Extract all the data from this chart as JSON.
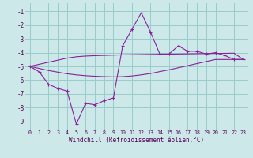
{
  "xlabel": "Windchill (Refroidissement éolien,°C)",
  "background_color": "#cce8e8",
  "grid_color": "#99cccc",
  "line_color": "#882299",
  "xlim": [
    -0.5,
    23.5
  ],
  "ylim": [
    -9.6,
    -0.4
  ],
  "yticks": [
    -1,
    -2,
    -3,
    -4,
    -5,
    -6,
    -7,
    -8,
    -9
  ],
  "xticks": [
    0,
    1,
    2,
    3,
    4,
    5,
    6,
    7,
    8,
    9,
    10,
    11,
    12,
    13,
    14,
    15,
    16,
    17,
    18,
    19,
    20,
    21,
    22,
    23
  ],
  "x_data": [
    0,
    1,
    2,
    3,
    4,
    5,
    6,
    7,
    8,
    9,
    10,
    11,
    12,
    13,
    14,
    15,
    16,
    17,
    18,
    19,
    20,
    21,
    22,
    23
  ],
  "y_main": [
    -5.0,
    -5.4,
    -6.3,
    -6.6,
    -6.8,
    -9.2,
    -7.7,
    -7.8,
    -7.5,
    -7.3,
    -3.5,
    -2.3,
    -1.1,
    -2.5,
    -4.1,
    -4.1,
    -3.5,
    -3.9,
    -3.9,
    -4.1,
    -4.0,
    -4.2,
    -4.5,
    -4.5
  ],
  "y_upper": [
    -5.0,
    -4.85,
    -4.7,
    -4.55,
    -4.4,
    -4.3,
    -4.25,
    -4.22,
    -4.2,
    -4.18,
    -4.16,
    -4.15,
    -4.14,
    -4.13,
    -4.12,
    -4.11,
    -4.1,
    -4.09,
    -4.08,
    -4.07,
    -4.06,
    -4.05,
    -4.04,
    -4.5
  ],
  "y_lower": [
    -5.0,
    -5.15,
    -5.3,
    -5.42,
    -5.54,
    -5.62,
    -5.68,
    -5.72,
    -5.75,
    -5.77,
    -5.75,
    -5.7,
    -5.62,
    -5.52,
    -5.38,
    -5.25,
    -5.1,
    -4.95,
    -4.8,
    -4.65,
    -4.5,
    -4.5,
    -4.5,
    -4.5
  ]
}
